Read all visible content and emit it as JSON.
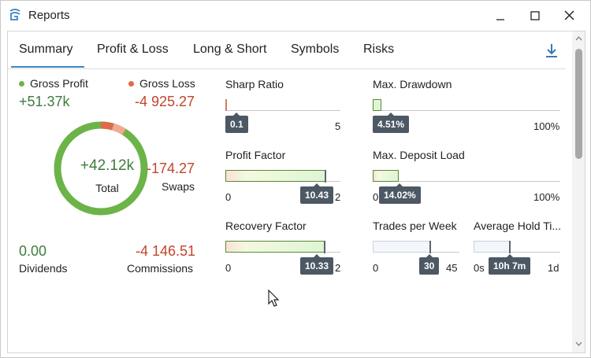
{
  "window": {
    "title": "Reports"
  },
  "tabs": [
    "Summary",
    "Profit & Loss",
    "Long & Short",
    "Symbols",
    "Risks"
  ],
  "active_tab": "Summary",
  "summary": {
    "gross_profit_label": "Gross Profit",
    "gross_profit_value": "+51.37k",
    "gross_loss_label": "Gross Loss",
    "gross_loss_value": "-4 925.27",
    "total_value": "+42.12k",
    "total_label": "Total",
    "swaps_value": "-174.27",
    "swaps_label": "Swaps",
    "dividends_value": "0.00",
    "dividends_label": "Dividends",
    "commissions_value": "-4 146.51",
    "commissions_label": "Commissions",
    "profit_share": 0.91,
    "loss_share": 0.09
  },
  "metrics": {
    "sharp_ratio": {
      "title": "Sharp Ratio",
      "badge": "0.1",
      "max": "5",
      "level": 0.02
    },
    "max_drawdown": {
      "title": "Max. Drawdown",
      "badge": "4.51%",
      "max": "100%",
      "level": 0.045
    },
    "profit_factor": {
      "title": "Profit Factor",
      "badge": "10.43",
      "min": "0",
      "max": "2",
      "level": 1.0
    },
    "max_deposit_load": {
      "title": "Max. Deposit Load",
      "badge": "14.02%",
      "min": "0",
      "max": "100%",
      "level": 0.14
    },
    "recovery_factor": {
      "title": "Recovery Factor",
      "badge": "10.33",
      "min": "0",
      "max": "2",
      "level": 1.0
    },
    "trades_per_week": {
      "title": "Trades per Week",
      "badge": "30",
      "min": "0",
      "max": "45",
      "level": 0.67
    },
    "avg_hold_time": {
      "title": "Average Hold Ti...",
      "badge": "10h 7m",
      "min": "0s",
      "max": "1d",
      "level": 0.42
    }
  },
  "colors": {
    "profit": "#6cb348",
    "loss": "#e0694c",
    "accent": "#3a86c8",
    "badge": "#4c5864"
  },
  "icons": {
    "app": "reports-app-icon",
    "minimize": "minimize-icon",
    "maximize": "maximize-icon",
    "close": "close-icon",
    "download": "download-icon"
  }
}
